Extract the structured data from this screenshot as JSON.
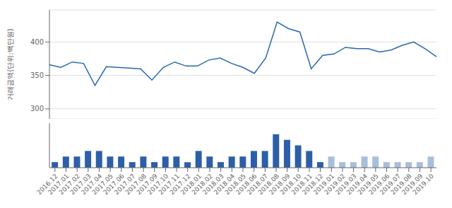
{
  "chart_data": [
    {
      "type": "line",
      "ylabel": "거래금액(단위:백만원)",
      "categories": [
        "2016.12",
        "2017.01",
        "2017.02",
        "2017.03",
        "2017.04",
        "2017.05",
        "2017.06",
        "2017.07",
        "2017.08",
        "2017.09",
        "2017.10",
        "2017.11",
        "2017.12",
        "2018.01",
        "2018.02",
        "2018.03",
        "2018.04",
        "2018.05",
        "2018.06",
        "2018.07",
        "2018.08",
        "2018.09",
        "2018.10",
        "2018.11",
        "2018.12",
        "2019.01",
        "2019.02",
        "2019.03",
        "2019.04",
        "2019.05",
        "2019.06",
        "2019.07",
        "2019.08",
        "2019.09",
        "2019.10"
      ],
      "values": [
        366,
        362,
        370,
        368,
        335,
        363,
        362,
        361,
        360,
        343,
        362,
        370,
        364,
        364,
        373,
        376,
        368,
        362,
        353,
        376,
        430,
        420,
        415,
        360,
        380,
        382,
        392,
        390,
        390,
        385,
        388,
        395,
        400,
        390,
        378
      ],
      "color": "#2868b0",
      "ylim": [
        285,
        448
      ],
      "yticks": [
        300,
        350,
        400
      ],
      "grid": true,
      "tick_labels": "y"
    },
    {
      "type": "bar",
      "categories": [
        "2016.12",
        "2017.01",
        "2017.02",
        "2017.03",
        "2017.04",
        "2017.05",
        "2017.06",
        "2017.07",
        "2017.08",
        "2017.09",
        "2017.10",
        "2017.11",
        "2017.12",
        "2018.01",
        "2018.02",
        "2018.03",
        "2018.04",
        "2018.05",
        "2018.06",
        "2018.07",
        "2018.08",
        "2018.09",
        "2018.10",
        "2018.11",
        "2018.12",
        "2019.01",
        "2019.02",
        "2019.03",
        "2019.04",
        "2019.05",
        "2019.06",
        "2019.07",
        "2019.08",
        "2019.09",
        "2019.10"
      ],
      "values": [
        1,
        2,
        2,
        3,
        3,
        2,
        2,
        1,
        2,
        1,
        2,
        2,
        1,
        3,
        2,
        1,
        2,
        2,
        3,
        3,
        6,
        5,
        4,
        3,
        1,
        2,
        1,
        1,
        2,
        2,
        1,
        1,
        1,
        1,
        2
      ],
      "colors": [
        "#2d5fa8",
        "#2d5fa8",
        "#2d5fa8",
        "#2d5fa8",
        "#2d5fa8",
        "#2d5fa8",
        "#2d5fa8",
        "#2d5fa8",
        "#2d5fa8",
        "#2d5fa8",
        "#2d5fa8",
        "#2d5fa8",
        "#2d5fa8",
        "#2d5fa8",
        "#2d5fa8",
        "#2d5fa8",
        "#2d5fa8",
        "#2d5fa8",
        "#2d5fa8",
        "#2d5fa8",
        "#2d5fa8",
        "#2d5fa8",
        "#2d5fa8",
        "#2d5fa8",
        "#2d5fa8",
        "#a8bedd",
        "#a8bedd",
        "#a8bedd",
        "#a8bedd",
        "#a8bedd",
        "#a8bedd",
        "#a8bedd",
        "#a8bedd",
        "#a8bedd",
        "#a8bedd"
      ],
      "ylim": [
        0,
        8
      ],
      "tick_labels": "x"
    }
  ]
}
